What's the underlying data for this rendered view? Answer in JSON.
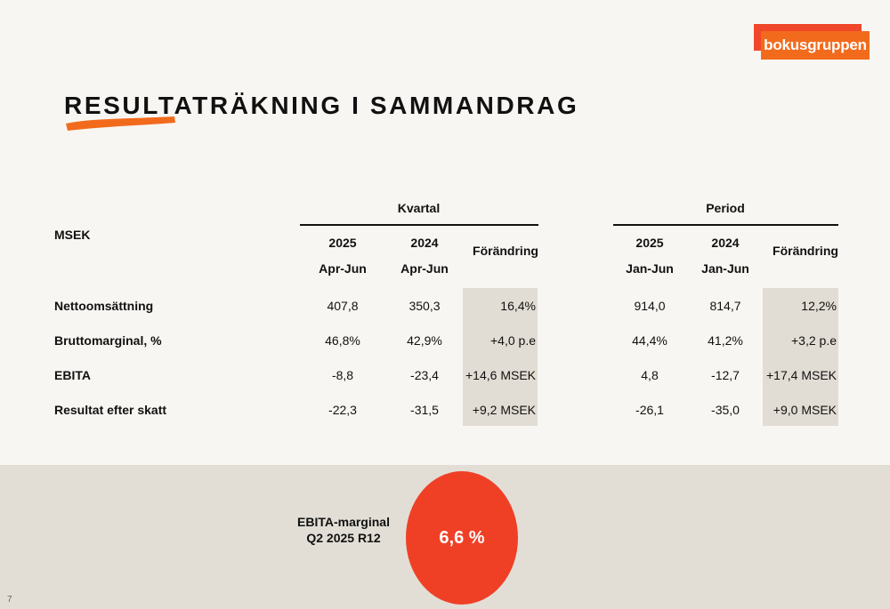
{
  "brand": {
    "logo_text": "bokusgruppen",
    "accent": "#f26b1d",
    "accent_red": "#f0462a"
  },
  "title": "RESULTATRÄKNING I SAMMANDRAG",
  "table": {
    "unit_label": "MSEK",
    "groups": [
      {
        "label": "Kvartal",
        "col1_year": "2025",
        "col1_period": "Apr-Jun",
        "col2_year": "2024",
        "col2_period": "Apr-Jun",
        "change_label": "Förändring"
      },
      {
        "label": "Period",
        "col1_year": "2025",
        "col1_period": "Jan-Jun",
        "col2_year": "2024",
        "col2_period": "Jan-Jun",
        "change_label": "Förändring"
      }
    ],
    "rows": [
      {
        "label": "Nettoomsättning",
        "q": [
          "407,8",
          "350,3",
          "16,4%"
        ],
        "p": [
          "914,0",
          "814,7",
          "12,2%"
        ]
      },
      {
        "label": "Bruttomarginal, %",
        "q": [
          "46,8%",
          "42,9%",
          "+4,0 p.e"
        ],
        "p": [
          "44,4%",
          "41,2%",
          "+3,2 p.e"
        ]
      },
      {
        "label": "EBITA",
        "q": [
          "-8,8",
          "-23,4",
          "+14,6 MSEK"
        ],
        "p": [
          "4,8",
          "-12,7",
          "+17,4 MSEK"
        ]
      },
      {
        "label": "Resultat efter skatt",
        "q": [
          "-22,3",
          "-31,5",
          "+9,2 MSEK"
        ],
        "p": [
          "-26,1",
          "-35,0",
          "+9,0 MSEK"
        ]
      }
    ]
  },
  "kpi": {
    "label_line1": "EBITA-marginal",
    "label_line2": "Q2 2025 R12",
    "value": "6,6 %",
    "color": "#ef4026"
  },
  "page_number": "7"
}
